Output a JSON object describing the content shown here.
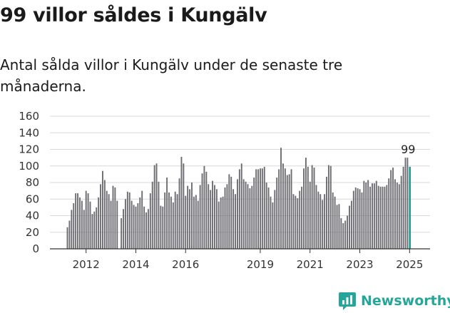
{
  "title": "99 villor såldes i Kungälv",
  "subtitle": "Antal sålda villor i Kungälv under de senaste tre månaderna.",
  "brand": {
    "name": "Newsworthy",
    "icon": "newsworthy-logo-icon",
    "color": "#26a69a"
  },
  "colors": {
    "bar": "#6d6c71",
    "highlight": "#1f9c8d",
    "axis": "#333333",
    "grid": "#d9d9d9"
  },
  "chart_data": {
    "type": "bar",
    "title": "",
    "xlabel": "",
    "ylabel": "",
    "ylim": [
      0,
      160
    ],
    "yticks": [
      0,
      20,
      40,
      60,
      80,
      100,
      120,
      140,
      160
    ],
    "xticks": [
      "2012",
      "2014",
      "2016",
      "2019",
      "2021",
      "2023",
      "2025"
    ],
    "grid": true,
    "highlight_label": "99",
    "series": [
      {
        "values": [
          26,
          34,
          47,
          55,
          67,
          67,
          62,
          58,
          47,
          70,
          67,
          57,
          42,
          45,
          50,
          62,
          78,
          94,
          83,
          70,
          66,
          58,
          76,
          74,
          58,
          0,
          37,
          48,
          60,
          69,
          68,
          58,
          53,
          51,
          55,
          62,
          70,
          51,
          44,
          48,
          67,
          81,
          101,
          103,
          81,
          52,
          51,
          68,
          86,
          68,
          63,
          56,
          69,
          66,
          85,
          111,
          103,
          64,
          76,
          72,
          80,
          63,
          65,
          58,
          77,
          91,
          100,
          93,
          78,
          71,
          82,
          77,
          72,
          57,
          62,
          63,
          74,
          78,
          90,
          87,
          72,
          66,
          84,
          96,
          103,
          84,
          81,
          78,
          73,
          76,
          86,
          96,
          96,
          97,
          97,
          99,
          80,
          74,
          63,
          56,
          71,
          86,
          96,
          122,
          103,
          97,
          89,
          90,
          96,
          66,
          64,
          61,
          70,
          75,
          97,
          110,
          99,
          81,
          101,
          98,
          77,
          69,
          66,
          59,
          66,
          87,
          101,
          100,
          68,
          63,
          53,
          54,
          37,
          31,
          34,
          40,
          52,
          58,
          70,
          74,
          73,
          72,
          68,
          82,
          80,
          83,
          75,
          79,
          79,
          82,
          76,
          75,
          75,
          75,
          77,
          85,
          95,
          98,
          84,
          80,
          78,
          88,
          99,
          110,
          110,
          99
        ]
      }
    ],
    "x_range": [
      "2011-04",
      "2025-10"
    ]
  }
}
